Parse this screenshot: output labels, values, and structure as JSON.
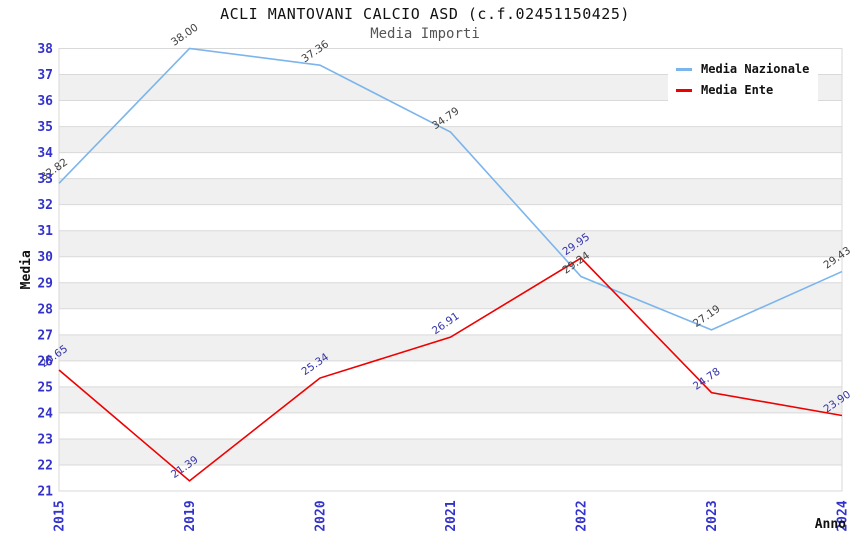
{
  "chart_data": {
    "type": "line",
    "title": "ACLI MANTOVANI CALCIO ASD (c.f.02451150425)",
    "subtitle": "Media Importi",
    "xlabel": "Anno",
    "ylabel": "Media",
    "x_categories": [
      "2015",
      "2019",
      "2020",
      "2021",
      "2022",
      "2023",
      "2024"
    ],
    "ylim": [
      21,
      38
    ],
    "y_tick_step": 1,
    "grid": "horizontal-only",
    "plot_bands": "alternating gray between odd and even y values (37-36, 35-34, ... 23-22)",
    "legend_position": "top-right",
    "series": [
      {
        "name": "Media Nazionale",
        "color": "#7cb5ec",
        "label_color": "#404040",
        "values": [
          32.82,
          38.0,
          37.36,
          34.79,
          29.24,
          27.19,
          29.43
        ],
        "labels": [
          "32.82",
          "38.00",
          "37.36",
          "34.79",
          "29.24",
          "27.19",
          "29.43"
        ]
      },
      {
        "name": "Media Ente",
        "color": "#ee0000",
        "label_color": "#3333aa",
        "values": [
          25.65,
          21.39,
          25.34,
          26.91,
          29.95,
          24.78,
          23.9
        ],
        "labels": [
          "25.65",
          "21.39",
          "25.34",
          "26.91",
          "29.95",
          "24.78",
          "23.90"
        ]
      }
    ],
    "colors": {
      "band": "#f0f0f0",
      "grid": "#d9d9d9",
      "axis_tick": "#3333cc",
      "axis_title": "#111111",
      "title": "#111111",
      "subtitle": "#555555"
    }
  }
}
